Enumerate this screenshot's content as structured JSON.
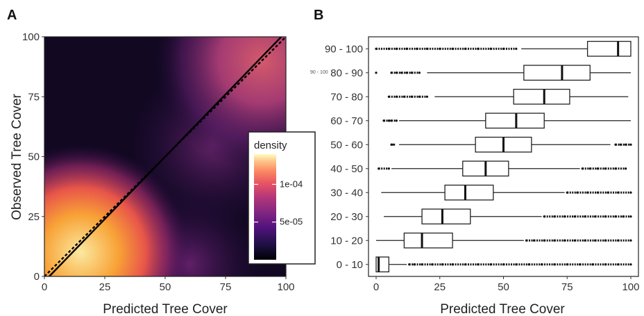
{
  "panels": {
    "a_letter": "A",
    "b_letter": "B"
  },
  "chart_data": [
    {
      "panel": "A",
      "type": "heatmap",
      "xlabel": "Predicted Tree Cover",
      "ylabel": "Observed Tree Cover",
      "xlim": [
        0,
        100
      ],
      "ylim": [
        0,
        100
      ],
      "xticks": [
        "0",
        "25",
        "50",
        "75",
        "100"
      ],
      "yticks": [
        "0",
        "25",
        "50",
        "75",
        "100"
      ],
      "density_modes": [
        {
          "x": 5,
          "y": 5,
          "level": 1.0
        },
        {
          "x": 25,
          "y": 8,
          "level": 0.7
        },
        {
          "x": 90,
          "y": 90,
          "level": 0.45
        },
        {
          "x": 70,
          "y": 60,
          "level": 0.3
        }
      ],
      "lines": [
        {
          "style": "solid",
          "from": [
            2,
            0
          ],
          "to": [
            100,
            102
          ]
        },
        {
          "style": "dashed",
          "from": [
            0,
            0
          ],
          "to": [
            100,
            100
          ]
        }
      ],
      "colors": {
        "low": "#000004",
        "mid": "#b73779",
        "high": "#fcfdbf"
      },
      "legend": {
        "title": "density",
        "labels": [
          "1e-04",
          "5e-05"
        ],
        "values": [
          0.0001,
          5e-05
        ],
        "range": [
          0,
          0.00014
        ],
        "placement": "right-center"
      }
    },
    {
      "panel": "B",
      "type": "box",
      "xlabel": "Predicted Tree Cover",
      "xlim": [
        -3,
        103
      ],
      "xticks": [
        "0",
        "25",
        "50",
        "75",
        "100"
      ],
      "note": "90 - 100",
      "categories": [
        "0 - 10",
        "10 - 20",
        "20 - 30",
        "30 - 40",
        "40 - 50",
        "50 - 60",
        "60 - 70",
        "70 - 80",
        "80 - 90",
        "90 - 100"
      ],
      "boxes": [
        {
          "min": 0,
          "q1": 0,
          "median": 1,
          "q3": 5,
          "max": 12,
          "outliers": [
            13,
            15,
            18,
            22,
            26,
            30,
            35,
            40,
            45,
            50,
            55,
            60,
            65,
            70,
            75,
            80,
            85,
            90,
            95,
            100
          ]
        },
        {
          "min": 0,
          "q1": 11,
          "median": 18,
          "q3": 30,
          "max": 58,
          "outliers": [
            59,
            62,
            66,
            70,
            74,
            78,
            82,
            86,
            90,
            95,
            100
          ]
        },
        {
          "min": 3,
          "q1": 18,
          "median": 26,
          "q3": 37,
          "max": 65,
          "outliers": [
            66,
            70,
            74,
            78,
            82,
            86,
            90,
            94,
            97,
            100
          ]
        },
        {
          "min": 2,
          "q1": 27,
          "median": 35,
          "q3": 46,
          "max": 74,
          "outliers": [
            75,
            79,
            83,
            87,
            91,
            95,
            100
          ]
        },
        {
          "min": 6,
          "q1": 34,
          "median": 43,
          "q3": 52,
          "max": 80,
          "outliers": [
            1,
            5,
            81,
            84,
            87,
            90,
            94,
            98
          ]
        },
        {
          "min": 9,
          "q1": 39,
          "median": 50,
          "q3": 61,
          "max": 92,
          "outliers": [
            6,
            7,
            94,
            96,
            98,
            100
          ]
        },
        {
          "min": 9,
          "q1": 43,
          "median": 55,
          "q3": 66,
          "max": 100,
          "outliers": [
            3,
            5,
            6,
            8
          ]
        },
        {
          "min": 23,
          "q1": 54,
          "median": 66,
          "q3": 76,
          "max": 99,
          "outliers": [
            5,
            8,
            11,
            14,
            17,
            20
          ]
        },
        {
          "min": 20,
          "q1": 58,
          "median": 73,
          "q3": 84,
          "max": 100,
          "outliers": [
            0,
            6,
            8,
            10,
            12,
            14,
            17
          ]
        },
        {
          "min": 57,
          "q1": 83,
          "median": 95,
          "q3": 100,
          "max": 100,
          "outliers": [
            0,
            5,
            8,
            12,
            16,
            20,
            25,
            30,
            35,
            40,
            45,
            50,
            55
          ]
        }
      ]
    }
  ]
}
